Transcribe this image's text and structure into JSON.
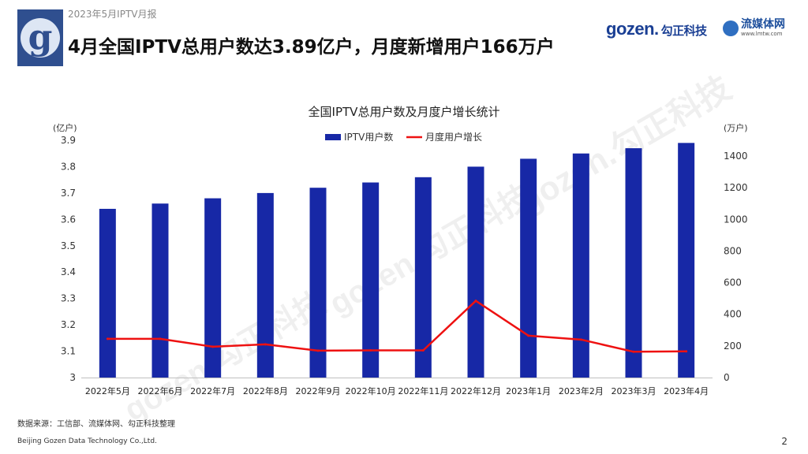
{
  "header": {
    "subtitle": "2023年5月IPTV月报",
    "headline": "4月全国IPTV总用户数达3.89亿户，月度新增用户166万户",
    "logo_letter": "g"
  },
  "brands": {
    "gozen_en": "gozen.",
    "gozen_cn": "勾正科技",
    "lmtw_cn": "流媒体网",
    "lmtw_url": "www.lmtw.com",
    "watermark_text": "gozen.勾正科技"
  },
  "chart_data": {
    "type": "bar",
    "title": "全国IPTV总用户数及月度户增长统计",
    "categories": [
      "2022年5月",
      "2022年6月",
      "2022年7月",
      "2022年8月",
      "2022年9月",
      "2022年10月",
      "2022年11月",
      "2022年12月",
      "2023年1月",
      "2023年2月",
      "2023年3月",
      "2023年4月"
    ],
    "series": [
      {
        "name": "IPTV用户数",
        "type": "bar",
        "axis": "left",
        "color": "#1728a6",
        "values": [
          3.64,
          3.66,
          3.68,
          3.7,
          3.72,
          3.74,
          3.76,
          3.8,
          3.83,
          3.85,
          3.87,
          3.89
        ]
      },
      {
        "name": "月度用户增长",
        "type": "line",
        "axis": "right",
        "color": "#ee1111",
        "values": [
          245,
          245,
          195,
          210,
          170,
          172,
          172,
          485,
          265,
          240,
          163,
          166
        ]
      }
    ],
    "left_axis": {
      "label": "(亿户)",
      "ylim": [
        3.0,
        3.9
      ],
      "ticks": [
        "3",
        "3.1",
        "3.2",
        "3.3",
        "3.4",
        "3.5",
        "3.6",
        "3.7",
        "3.8",
        "3.9"
      ]
    },
    "right_axis": {
      "label": "(万户)",
      "ylim": [
        0,
        1500
      ],
      "ticks": [
        "0",
        "200",
        "400",
        "600",
        "800",
        "1000",
        "1200",
        "1400"
      ]
    },
    "legend": [
      "IPTV用户数",
      "月度用户增长"
    ],
    "legend_position": "top-center",
    "grid": false
  },
  "footer": {
    "source": "数据来源：工信部、流媒体网、勾正科技整理",
    "company": "Beijing Gozen Data Technology Co.,Ltd.",
    "page": "2"
  }
}
